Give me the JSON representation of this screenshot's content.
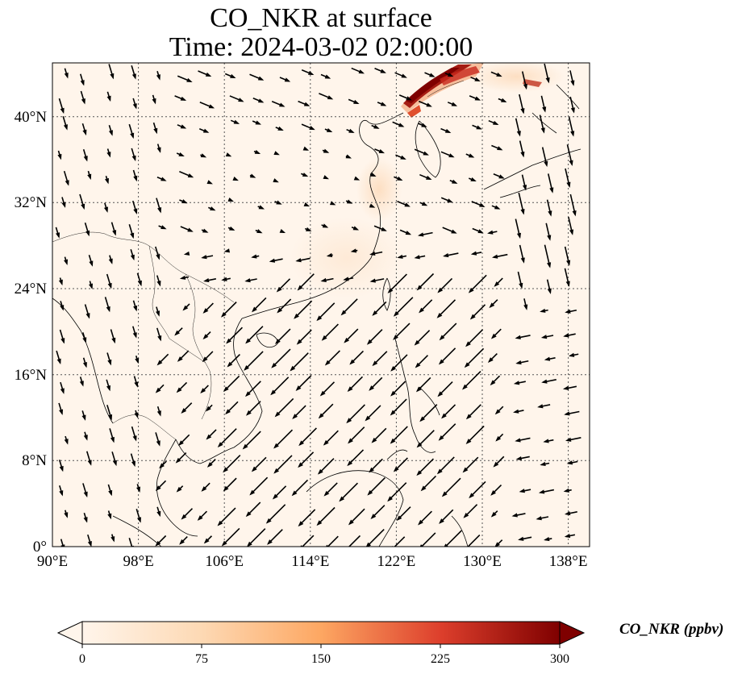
{
  "title": {
    "line1": "CO_NKR at surface",
    "line2": "Time: 2024-03-02 02:00:00"
  },
  "map": {
    "projection": "PlateCarree",
    "lon_range": [
      90,
      140
    ],
    "lat_range": [
      0,
      45
    ],
    "lon_ticks": [
      "90°E",
      "98°E",
      "106°E",
      "114°E",
      "122°E",
      "130°E",
      "138°E"
    ],
    "lat_ticks": [
      "0°",
      "8°N",
      "16°N",
      "24°N",
      "32°N",
      "40°N"
    ],
    "gridlines": true,
    "background_color": "#fff5eb",
    "plume_color": "#7f0000"
  },
  "colorbar": {
    "label": "CO_NKR (ppbv)",
    "ticks": [
      "0",
      "75",
      "150",
      "225",
      "300"
    ],
    "min": 0,
    "max": 300,
    "colormap": "OrRd",
    "extend": "both"
  }
}
